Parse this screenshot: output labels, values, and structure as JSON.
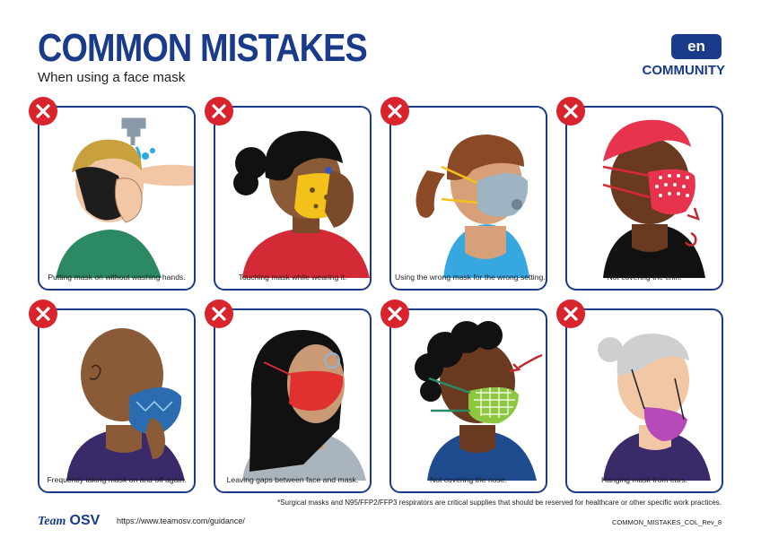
{
  "header": {
    "title": "COMMON MISTAKES",
    "subtitle": "When using a face mask",
    "language_badge": "en",
    "audience": "COMMUNITY"
  },
  "cards": [
    {
      "caption": "Putting mask on without washing hands.",
      "icon": "close-x-icon"
    },
    {
      "caption": "Touching mask while wearing it.",
      "icon": "close-x-icon"
    },
    {
      "caption": "Using the wrong mask for the wrong setting.*",
      "icon": "close-x-icon"
    },
    {
      "caption": "Not covering the chin.",
      "icon": "close-x-icon"
    },
    {
      "caption": "Frequently taking mask on and off again.",
      "icon": "close-x-icon"
    },
    {
      "caption": "Leaving gaps between face and mask.",
      "icon": "close-x-icon"
    },
    {
      "caption": "Not covering the nose.",
      "icon": "close-x-icon"
    },
    {
      "caption": "Hanging mask from ears.",
      "icon": "close-x-icon"
    }
  ],
  "footer": {
    "footnote": "*Surgical masks and N95/FFP2/FFP3 respirators are critical supplies that should be reserved for healthcare or other specific work practices.",
    "brand_team": "Team",
    "brand_osv": "OSV",
    "url": "https://www.teamosv.com/guidance/",
    "revision": "COMMON_MISTAKES_COL_Rev_8"
  },
  "colors": {
    "brand_blue": "#1a3a8a",
    "warning_red": "#d9232d"
  }
}
